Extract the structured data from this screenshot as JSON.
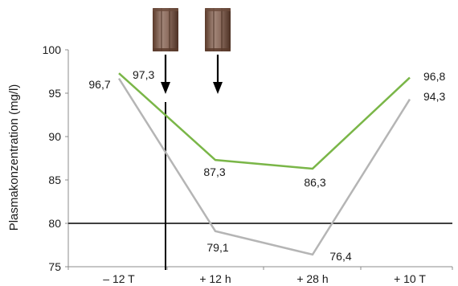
{
  "chart_data": {
    "type": "line",
    "title": "",
    "xlabel": "",
    "ylabel": "Plasmakonzentration (mg/l)",
    "categories": [
      "– 12 T",
      "+ 12 h",
      "+ 28 h",
      "+ 10 T"
    ],
    "ylim": [
      75,
      100
    ],
    "yticks": [
      75,
      80,
      85,
      90,
      95,
      100
    ],
    "grid": false,
    "legend": "none",
    "reference_line_y": 80,
    "series": [
      {
        "color": "#7ab648",
        "values": [
          97.3,
          87.3,
          86.3,
          96.8
        ],
        "labels": [
          "97,3",
          "87,3",
          "86,3",
          "96,8"
        ]
      },
      {
        "color": "#b5b5b5",
        "values": [
          96.7,
          79.1,
          76.4,
          94.3
        ],
        "labels": [
          "96,7",
          "79,1",
          "76,4",
          "94,3"
        ]
      }
    ],
    "annotations": [
      {
        "type": "vertical-line",
        "x_between": [
          "– 12 T",
          "+ 12 h"
        ]
      },
      {
        "type": "dose-arrow",
        "icon": "pill-bottle-icon",
        "position": "between – 12 T and + 12 h"
      },
      {
        "type": "dose-arrow",
        "icon": "pill-bottle-icon",
        "position": "at + 12 h"
      }
    ]
  }
}
